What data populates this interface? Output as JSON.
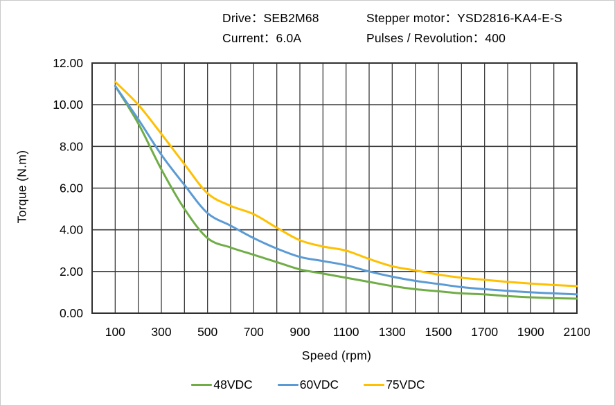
{
  "header": {
    "drive_label": "Drive：SEB2M68",
    "motor_label": "Stepper motor：YSD2816-KA4-E-S",
    "current_label": "Current：6.0A",
    "pulses_label": "Pulses / Revolution：400"
  },
  "chart_data": {
    "type": "line",
    "title": "",
    "xlabel": "Speed (rpm)",
    "ylabel": "Torque (N.m)",
    "xlim": [
      0,
      2100
    ],
    "ylim": [
      0,
      12
    ],
    "grid": {
      "on": true,
      "x_step": 100,
      "y_step": 2,
      "color": "#3a3a3a"
    },
    "x_tick_labels": [
      100,
      300,
      500,
      700,
      900,
      1100,
      1300,
      1500,
      1700,
      1900,
      2100
    ],
    "y_tick_labels": [
      "0.00",
      "2.00",
      "4.00",
      "6.00",
      "8.00",
      "10.00",
      "12.00"
    ],
    "x": [
      100,
      200,
      300,
      400,
      500,
      600,
      700,
      800,
      900,
      1000,
      1100,
      1200,
      1300,
      1400,
      1500,
      1600,
      1700,
      1800,
      1900,
      2000,
      2100
    ],
    "series": [
      {
        "name": "48VDC",
        "color": "#70AD47",
        "values": [
          10.9,
          9.1,
          6.9,
          5.0,
          3.6,
          3.15,
          2.8,
          2.45,
          2.1,
          1.9,
          1.7,
          1.5,
          1.3,
          1.15,
          1.05,
          0.95,
          0.9,
          0.82,
          0.76,
          0.72,
          0.7
        ]
      },
      {
        "name": "60VDC",
        "color": "#5B9BD5",
        "values": [
          10.9,
          9.3,
          7.6,
          6.15,
          4.8,
          4.2,
          3.6,
          3.1,
          2.7,
          2.5,
          2.3,
          2.0,
          1.75,
          1.55,
          1.4,
          1.25,
          1.15,
          1.07,
          1.0,
          0.95,
          0.9
        ]
      },
      {
        "name": "75VDC",
        "color": "#FFC000",
        "values": [
          11.1,
          10.0,
          8.6,
          7.15,
          5.75,
          5.15,
          4.75,
          4.1,
          3.5,
          3.2,
          3.0,
          2.6,
          2.25,
          2.05,
          1.85,
          1.7,
          1.6,
          1.5,
          1.42,
          1.35,
          1.3
        ]
      }
    ],
    "legend_position": "bottom",
    "frame_color": "#303030",
    "axis_text_color": "#000000"
  }
}
